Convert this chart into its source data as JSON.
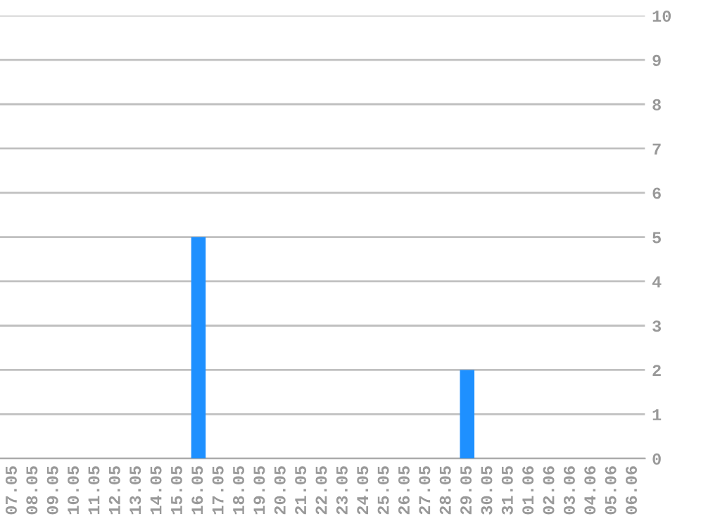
{
  "chart_data": {
    "type": "bar",
    "categories": [
      "07.05",
      "08.05",
      "09.05",
      "10.05",
      "11.05",
      "12.05",
      "13.05",
      "14.05",
      "15.05",
      "16.05",
      "17.05",
      "18.05",
      "19.05",
      "20.05",
      "21.05",
      "22.05",
      "23.05",
      "24.05",
      "25.05",
      "26.05",
      "27.05",
      "28.05",
      "29.05",
      "30.05",
      "31.05",
      "01.06",
      "02.06",
      "03.06",
      "04.06",
      "05.06",
      "06.06"
    ],
    "values": [
      0,
      0,
      0,
      0,
      0,
      0,
      0,
      0,
      0,
      5,
      0,
      0,
      0,
      0,
      0,
      0,
      0,
      0,
      0,
      0,
      0,
      0,
      2,
      0,
      0,
      0,
      0,
      0,
      0,
      0,
      0
    ],
    "color": "#1e90ff",
    "ylim": [
      0,
      10
    ],
    "yticks": [
      0,
      1,
      2,
      3,
      4,
      5,
      6,
      7,
      8,
      9,
      10
    ],
    "grid": "y",
    "legend": false
  }
}
